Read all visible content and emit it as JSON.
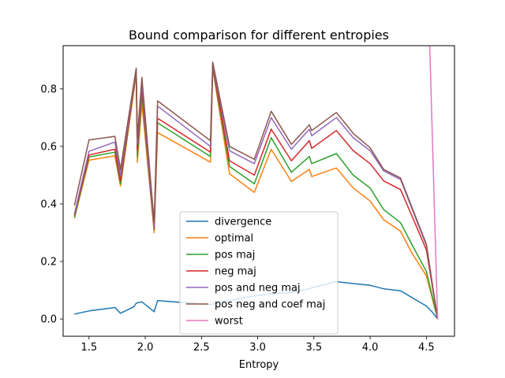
{
  "chart_data": {
    "type": "line",
    "title": "Bound comparison for different entropies",
    "xlabel": "Entropy",
    "ylabel": "",
    "xlim": [
      1.27,
      4.75
    ],
    "ylim": [
      -0.06,
      0.95
    ],
    "xticks": [
      1.5,
      2.0,
      2.5,
      3.0,
      3.5,
      4.0,
      4.5
    ],
    "xtick_labels": [
      "1.5",
      "2.0",
      "2.5",
      "3.0",
      "3.5",
      "4.0",
      "4.5"
    ],
    "yticks": [
      0.0,
      0.2,
      0.4,
      0.6,
      0.8
    ],
    "ytick_labels": [
      "0.0",
      "0.2",
      "0.4",
      "0.6",
      "0.8"
    ],
    "grid": false,
    "legend_position": "lower-center",
    "series": [
      {
        "name": "divergence",
        "color": "#1f77b4",
        "x": [
          1.37,
          1.5,
          1.73,
          1.78,
          1.9,
          1.92,
          1.97,
          2.08,
          2.11,
          2.58,
          2.75,
          2.97,
          3.12,
          3.3,
          3.46,
          3.48,
          3.7,
          3.85,
          4.0,
          4.12,
          4.27,
          4.37,
          4.5,
          4.55,
          4.6
        ],
        "y": [
          0.017,
          0.028,
          0.04,
          0.02,
          0.043,
          0.055,
          0.06,
          0.025,
          0.064,
          0.05,
          0.065,
          0.08,
          0.088,
          0.092,
          0.105,
          0.108,
          0.13,
          0.123,
          0.117,
          0.105,
          0.098,
          0.075,
          0.045,
          0.025,
          0.0
        ]
      },
      {
        "name": "optimal",
        "color": "#ff7f0e",
        "x": [
          1.37,
          1.5,
          1.73,
          1.78,
          1.92,
          1.93,
          1.97,
          2.08,
          2.11,
          2.58,
          2.6,
          2.75,
          2.97,
          3.12,
          3.3,
          3.46,
          3.48,
          3.7,
          3.85,
          4.0,
          4.12,
          4.27,
          4.37,
          4.5,
          4.6
        ],
        "y": [
          0.35,
          0.552,
          0.567,
          0.462,
          0.85,
          0.545,
          0.75,
          0.3,
          0.648,
          0.545,
          0.87,
          0.505,
          0.44,
          0.59,
          0.478,
          0.52,
          0.495,
          0.525,
          0.455,
          0.41,
          0.345,
          0.305,
          0.23,
          0.15,
          0.0
        ]
      },
      {
        "name": "pos maj",
        "color": "#2ca02c",
        "x": [
          1.37,
          1.5,
          1.73,
          1.78,
          1.92,
          1.93,
          1.97,
          2.08,
          2.11,
          2.58,
          2.6,
          2.75,
          2.97,
          3.12,
          3.3,
          3.46,
          3.48,
          3.7,
          3.85,
          4.0,
          4.12,
          4.27,
          4.37,
          4.5,
          4.6
        ],
        "y": [
          0.352,
          0.563,
          0.58,
          0.47,
          0.86,
          0.565,
          0.78,
          0.31,
          0.682,
          0.565,
          0.875,
          0.53,
          0.47,
          0.63,
          0.51,
          0.565,
          0.54,
          0.575,
          0.5,
          0.455,
          0.38,
          0.335,
          0.26,
          0.165,
          0.0
        ]
      },
      {
        "name": "neg maj",
        "color": "#d62728",
        "x": [
          1.37,
          1.5,
          1.73,
          1.78,
          1.92,
          1.93,
          1.97,
          2.08,
          2.11,
          2.58,
          2.6,
          2.75,
          2.97,
          3.12,
          3.3,
          3.46,
          3.48,
          3.7,
          3.85,
          4.0,
          4.12,
          4.27,
          4.37,
          4.5,
          4.6
        ],
        "y": [
          0.36,
          0.57,
          0.59,
          0.48,
          0.865,
          0.59,
          0.8,
          0.315,
          0.698,
          0.58,
          0.88,
          0.55,
          0.5,
          0.66,
          0.55,
          0.62,
          0.593,
          0.655,
          0.585,
          0.54,
          0.48,
          0.45,
          0.36,
          0.24,
          0.0
        ]
      },
      {
        "name": "pos and neg maj",
        "color": "#9467bd",
        "x": [
          1.37,
          1.5,
          1.73,
          1.78,
          1.92,
          1.93,
          1.97,
          2.08,
          2.11,
          2.58,
          2.6,
          2.75,
          2.97,
          3.12,
          3.3,
          3.46,
          3.48,
          3.7,
          3.85,
          4.0,
          4.12,
          4.27,
          4.37,
          4.5,
          4.6
        ],
        "y": [
          0.365,
          0.583,
          0.615,
          0.5,
          0.868,
          0.61,
          0.82,
          0.32,
          0.74,
          0.6,
          0.885,
          0.585,
          0.54,
          0.7,
          0.59,
          0.66,
          0.637,
          0.7,
          0.63,
          0.585,
          0.515,
          0.485,
          0.385,
          0.255,
          0.0
        ]
      },
      {
        "name": "pos neg and coef maj",
        "color": "#8c564b",
        "x": [
          1.37,
          1.5,
          1.73,
          1.78,
          1.92,
          1.93,
          1.97,
          2.08,
          2.11,
          2.58,
          2.6,
          2.75,
          2.97,
          3.12,
          3.3,
          3.46,
          3.48,
          3.7,
          3.85,
          4.0,
          4.12,
          4.27,
          4.37,
          4.5,
          4.6
        ],
        "y": [
          0.395,
          0.622,
          0.635,
          0.52,
          0.872,
          0.63,
          0.84,
          0.335,
          0.758,
          0.62,
          0.893,
          0.6,
          0.555,
          0.722,
          0.607,
          0.675,
          0.655,
          0.718,
          0.645,
          0.595,
          0.52,
          0.49,
          0.39,
          0.26,
          0.0
        ]
      },
      {
        "name": "worst",
        "color": "#e377c2",
        "x": [
          4.53,
          4.6
        ],
        "y": [
          0.95,
          0.0
        ]
      }
    ]
  }
}
